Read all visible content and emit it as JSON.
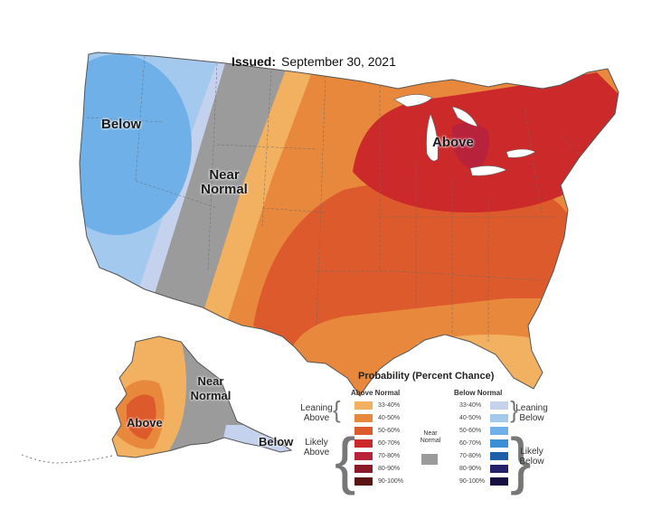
{
  "header": {
    "issued_label": "Issued:",
    "issued_date": "September 30, 2021"
  },
  "regions": {
    "west_below": "Below",
    "near_normal_top": "Near",
    "near_normal_bottom": "Normal",
    "east_above": "Above",
    "ak_near_top": "Near",
    "ak_near_bottom": "Normal",
    "ak_above": "Above",
    "ak_below": "Below"
  },
  "colors": {
    "below_likely": "#6fb0e8",
    "below_leaning": "#a4c9ef",
    "below_slight": "#c4d2ee",
    "near_normal": "#9b9b9b",
    "above_leaning": "#f2b061",
    "above_mid": "#e8883c",
    "above_likely": "#dc5a2c",
    "above_strong": "#cc2a2a",
    "above_very": "#b8223a",
    "above_max": "#6b1a1a"
  },
  "legend": {
    "title": "Probability (Percent Chance)",
    "above_header": "Above Normal",
    "below_header": "Below Normal",
    "leaning_above": "Leaning Above",
    "likely_above": "Likely Above",
    "near_normal": "Near Normal",
    "leaning_below": "Leaning Below",
    "likely_below": "Likely Below",
    "above_items": [
      {
        "label": "33-40%",
        "color": "#f2b061"
      },
      {
        "label": "40-50%",
        "color": "#e8883c"
      },
      {
        "label": "50-60%",
        "color": "#dc5a2c"
      },
      {
        "label": "60-70%",
        "color": "#cc2a2a"
      },
      {
        "label": "70-80%",
        "color": "#b8223a"
      },
      {
        "label": "80-90%",
        "color": "#8a1a2a"
      },
      {
        "label": "90-100%",
        "color": "#5a1414"
      }
    ],
    "below_items": [
      {
        "label": "33-40%",
        "color": "#c4d2ee"
      },
      {
        "label": "40-50%",
        "color": "#a4c9ef"
      },
      {
        "label": "50-60%",
        "color": "#6fb0e8"
      },
      {
        "label": "60-70%",
        "color": "#3b8fd6"
      },
      {
        "label": "70-80%",
        "color": "#1f5ea8"
      },
      {
        "label": "80-90%",
        "color": "#24206a"
      },
      {
        "label": "90-100%",
        "color": "#161040"
      }
    ]
  }
}
